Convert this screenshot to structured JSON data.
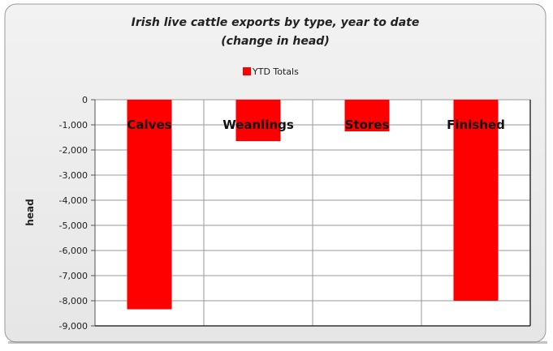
{
  "chart_data": {
    "type": "bar",
    "title": "Irish live cattle exports by type, year to date",
    "subtitle": "(change in head)",
    "xlabel": "",
    "ylabel": "head",
    "categories": [
      "Calves",
      "Weanlings",
      "Stores",
      "Finished"
    ],
    "series": [
      {
        "name": "YTD Totals",
        "values": [
          -8340,
          -1650,
          -1260,
          -8000
        ],
        "color": "#ff0000"
      }
    ],
    "ylim": [
      -9000,
      0
    ],
    "yticks": [
      0,
      -1000,
      -2000,
      -3000,
      -4000,
      -5000,
      -6000,
      -7000,
      -8000,
      -9000
    ],
    "ytick_labels": [
      "0",
      "-1,000",
      "-2,000",
      "-3,000",
      "-4,000",
      "-5,000",
      "-6,000",
      "-7,000",
      "-8,000",
      "-9,000"
    ],
    "grid": true,
    "legend": "top-center"
  }
}
